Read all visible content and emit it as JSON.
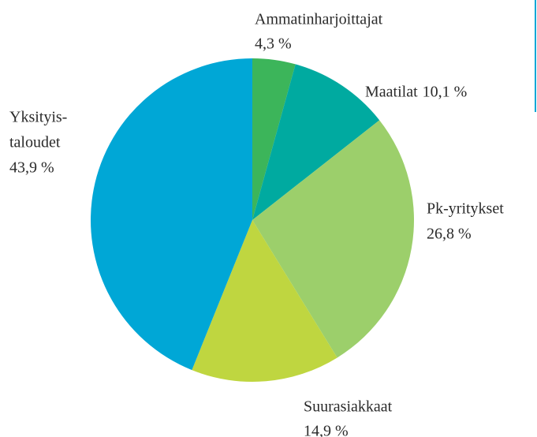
{
  "chart_data": {
    "type": "pie",
    "categories": [
      [
        "Ammatinharjoittajat"
      ],
      [
        "Maatilat"
      ],
      [
        "Pk-yritykset"
      ],
      [
        "Suurasiakkaat"
      ],
      [
        "Yksityis-",
        "taloudet"
      ]
    ],
    "values": [
      4.3,
      10.1,
      26.8,
      14.9,
      43.9
    ],
    "value_labels": [
      "4,3 %",
      "10,1 %",
      "26,8 %",
      "14,9 %",
      "43,9 %"
    ],
    "colors": [
      "#3cb55a",
      "#00aaa0",
      "#9ccf6b",
      "#bfd640",
      "#00a7d6"
    ]
  }
}
